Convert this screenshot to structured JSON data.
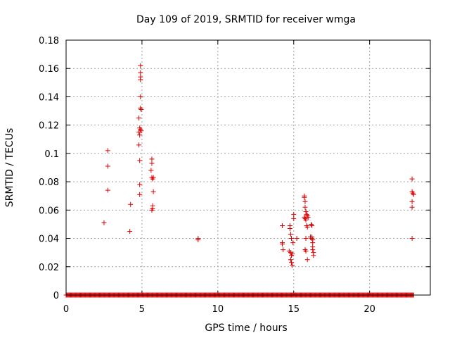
{
  "chart_data": {
    "type": "scatter",
    "title": "Day 109 of 2019, SRMTID for receiver wmga",
    "xlabel": "GPS time / hours",
    "ylabel": "SRMTID / TECUs",
    "xlim": [
      0,
      24
    ],
    "ylim": [
      0,
      0.18
    ],
    "xticks": [
      0,
      5,
      10,
      15,
      20
    ],
    "xtick_labels": [
      "0",
      "5",
      "10",
      "15",
      "20"
    ],
    "yticks": [
      0,
      0.02,
      0.04,
      0.06,
      0.08,
      0.1,
      0.12,
      0.14,
      0.16,
      0.18
    ],
    "ytick_labels": [
      "0",
      "0.02",
      "0.04",
      "0.06",
      "0.08",
      "0.1",
      "0.12",
      "0.14",
      "0.16",
      "0.18"
    ],
    "grid": true,
    "marker": "+",
    "color": "#e00000",
    "baseline": {
      "y": 0,
      "x_start": 0,
      "x_end": 22.9,
      "step": 0.05
    },
    "series": [
      {
        "name": "SRMTID",
        "points": [
          [
            2.5,
            0.051
          ],
          [
            2.75,
            0.102
          ],
          [
            2.75,
            0.091
          ],
          [
            2.75,
            0.074
          ],
          [
            4.2,
            0.045
          ],
          [
            4.25,
            0.064
          ],
          [
            4.8,
            0.125
          ],
          [
            4.8,
            0.115
          ],
          [
            4.8,
            0.106
          ],
          [
            4.85,
            0.095
          ],
          [
            4.85,
            0.078
          ],
          [
            4.85,
            0.071
          ],
          [
            4.9,
            0.162
          ],
          [
            4.9,
            0.157
          ],
          [
            4.9,
            0.154
          ],
          [
            4.9,
            0.152
          ],
          [
            4.9,
            0.14
          ],
          [
            4.9,
            0.132
          ],
          [
            4.95,
            0.131
          ],
          [
            4.85,
            0.118
          ],
          [
            4.9,
            0.117
          ],
          [
            4.95,
            0.116
          ],
          [
            4.85,
            0.113
          ],
          [
            5.6,
            0.088
          ],
          [
            5.65,
            0.096
          ],
          [
            5.65,
            0.093
          ],
          [
            5.65,
            0.083
          ],
          [
            5.7,
            0.082
          ],
          [
            5.75,
            0.083
          ],
          [
            5.75,
            0.073
          ],
          [
            5.7,
            0.063
          ],
          [
            5.7,
            0.061
          ],
          [
            5.65,
            0.06
          ],
          [
            8.7,
            0.04
          ],
          [
            8.7,
            0.039
          ],
          [
            14.25,
            0.049
          ],
          [
            14.25,
            0.037
          ],
          [
            14.25,
            0.036
          ],
          [
            14.3,
            0.032
          ],
          [
            14.75,
            0.049
          ],
          [
            14.75,
            0.047
          ],
          [
            14.8,
            0.043
          ],
          [
            14.85,
            0.04
          ],
          [
            14.95,
            0.037
          ],
          [
            14.7,
            0.031
          ],
          [
            14.8,
            0.03
          ],
          [
            14.9,
            0.029
          ],
          [
            14.85,
            0.028
          ],
          [
            14.8,
            0.025
          ],
          [
            14.85,
            0.023
          ],
          [
            14.9,
            0.021
          ],
          [
            15.0,
            0.057
          ],
          [
            15.0,
            0.054
          ],
          [
            15.2,
            0.04
          ],
          [
            15.7,
            0.07
          ],
          [
            15.7,
            0.069
          ],
          [
            15.75,
            0.066
          ],
          [
            15.75,
            0.062
          ],
          [
            15.8,
            0.059
          ],
          [
            15.7,
            0.055
          ],
          [
            15.75,
            0.054
          ],
          [
            15.8,
            0.053
          ],
          [
            15.85,
            0.057
          ],
          [
            15.9,
            0.056
          ],
          [
            15.95,
            0.055
          ],
          [
            15.85,
            0.049
          ],
          [
            15.9,
            0.048
          ],
          [
            15.8,
            0.04
          ],
          [
            15.75,
            0.032
          ],
          [
            15.8,
            0.031
          ],
          [
            15.9,
            0.025
          ],
          [
            16.15,
            0.05
          ],
          [
            16.2,
            0.049
          ],
          [
            16.2,
            0.041
          ],
          [
            16.2,
            0.04
          ],
          [
            16.25,
            0.039
          ],
          [
            16.25,
            0.037
          ],
          [
            16.25,
            0.034
          ],
          [
            16.25,
            0.032
          ],
          [
            16.3,
            0.03
          ],
          [
            16.3,
            0.028
          ],
          [
            16.1,
            0.041
          ],
          [
            22.8,
            0.082
          ],
          [
            22.8,
            0.073
          ],
          [
            22.85,
            0.072
          ],
          [
            22.9,
            0.071
          ],
          [
            22.8,
            0.066
          ],
          [
            22.8,
            0.062
          ],
          [
            22.8,
            0.04
          ]
        ]
      }
    ]
  }
}
